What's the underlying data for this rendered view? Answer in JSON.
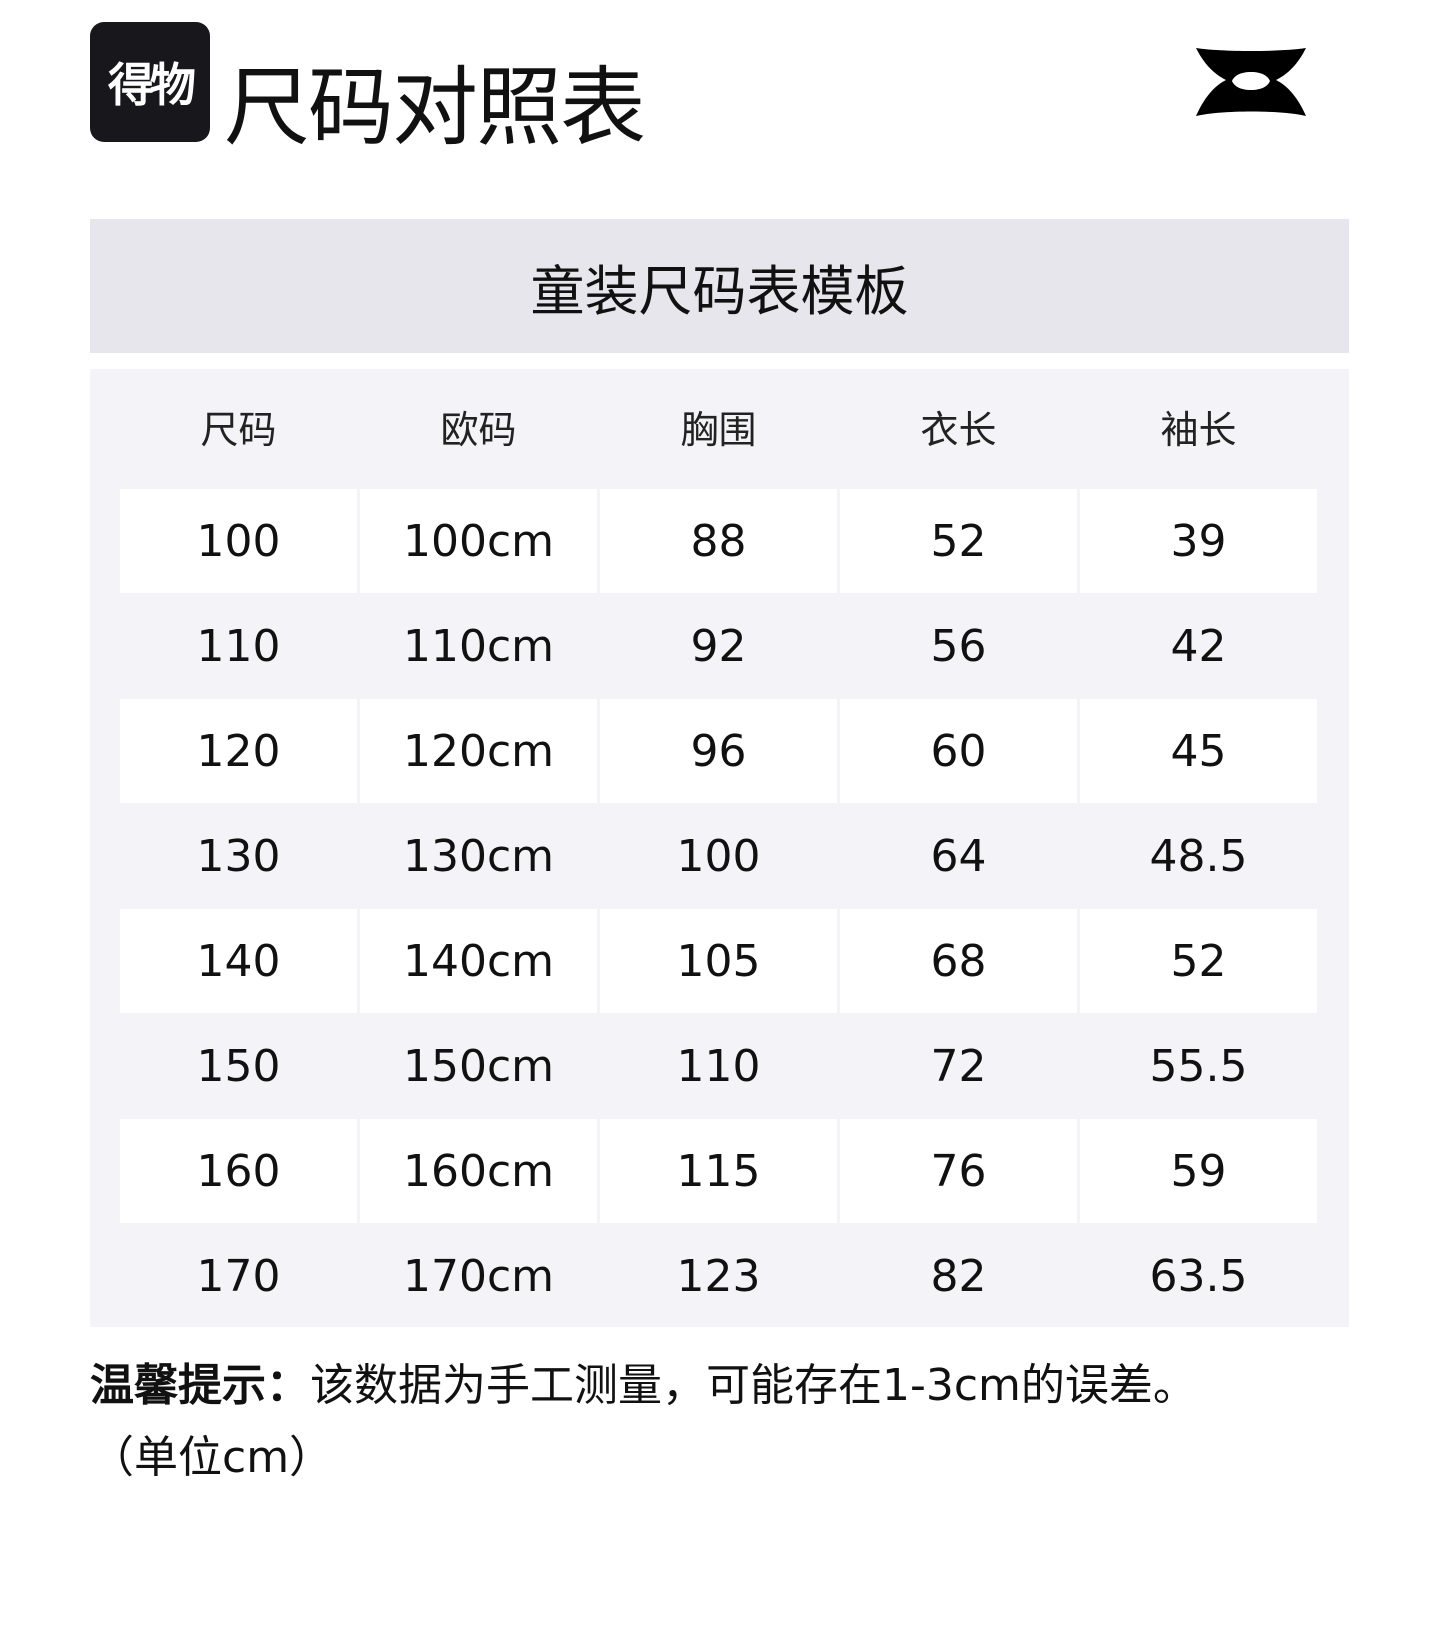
{
  "logo_text": "得物",
  "title": "尺码对照表",
  "brand_logo": "under-armour-logo",
  "table_title": "童装尺码表模板",
  "columns": [
    "尺码",
    "欧码",
    "胸围",
    "衣长",
    "袖长"
  ],
  "rows": [
    [
      "100",
      "100cm",
      "88",
      "52",
      "39"
    ],
    [
      "110",
      "110cm",
      "92",
      "56",
      "42"
    ],
    [
      "120",
      "120cm",
      "96",
      "60",
      "45"
    ],
    [
      "130",
      "130cm",
      "100",
      "64",
      "48.5"
    ],
    [
      "140",
      "140cm",
      "105",
      "68",
      "52"
    ],
    [
      "150",
      "150cm",
      "110",
      "72",
      "55.5"
    ],
    [
      "160",
      "160cm",
      "115",
      "76",
      "59"
    ],
    [
      "170",
      "170cm",
      "123",
      "82",
      "63.5"
    ]
  ],
  "note": {
    "label": "温馨提示：",
    "text": "该数据为手工测量，可能存在1-3cm的误差。",
    "unit": "（单位cm）"
  }
}
